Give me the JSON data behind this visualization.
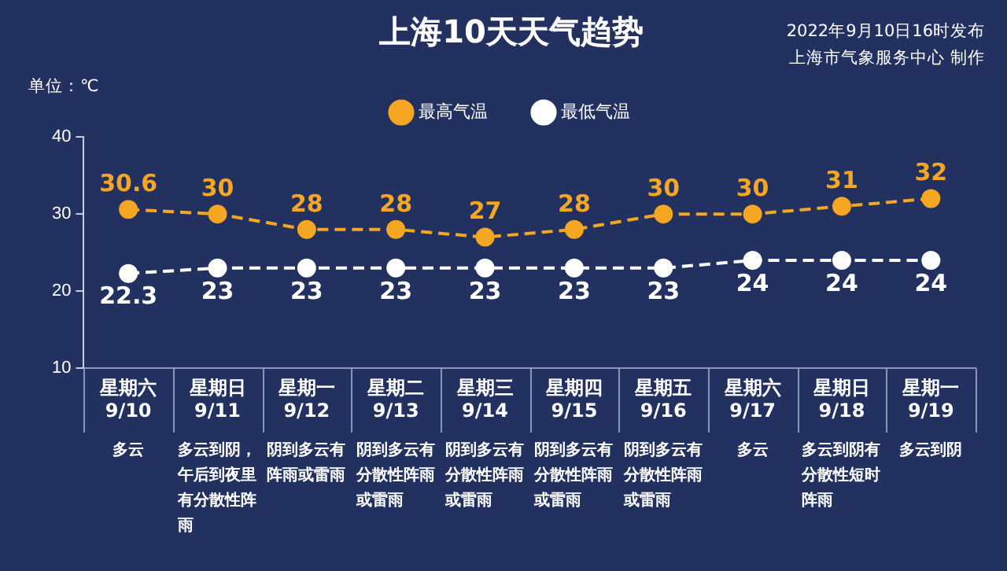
{
  "chart_data": {
    "type": "line",
    "title": "上海10天天气趋势",
    "ylabel": "单位：℃",
    "categories": [
      "星期六\n9/10",
      "星期日\n9/11",
      "星期一\n9/12",
      "星期二\n9/13",
      "星期三\n9/14",
      "星期四\n9/15",
      "星期五\n9/16",
      "星期六\n9/17",
      "星期日\n9/18",
      "星期一\n9/19"
    ],
    "series": [
      {
        "name": "最高气温",
        "color": "#f5a623",
        "values": [
          30.6,
          30,
          28,
          28,
          27,
          28,
          30,
          30,
          31,
          32
        ]
      },
      {
        "name": "最低气温",
        "color": "#ffffff",
        "values": [
          22.3,
          23,
          23,
          23,
          23,
          23,
          23,
          24,
          24,
          24
        ]
      }
    ],
    "ylim": [
      10,
      40
    ],
    "yticks": [
      10,
      20,
      30,
      40
    ],
    "grid": false,
    "legend": "top",
    "marker": "circle",
    "line_style": "dashed",
    "data_labels": true,
    "annotations": [
      "2022年9月10日16时发布",
      "上海市气象服务中心 制作",
      "多云",
      "多云到阴，午后到夜里有分散性阵雨",
      "阴到多云有阵雨或雷雨",
      "阴到多云有分散性阵雨或雷雨",
      "阴到多云有分散性阵雨或雷雨",
      "阴到多云有分散性阵雨或雷雨",
      "阴到多云有分散性阵雨或雷雨",
      "多云",
      "多云到阴有分散性短时阵雨",
      "多云到阴"
    ]
  }
}
